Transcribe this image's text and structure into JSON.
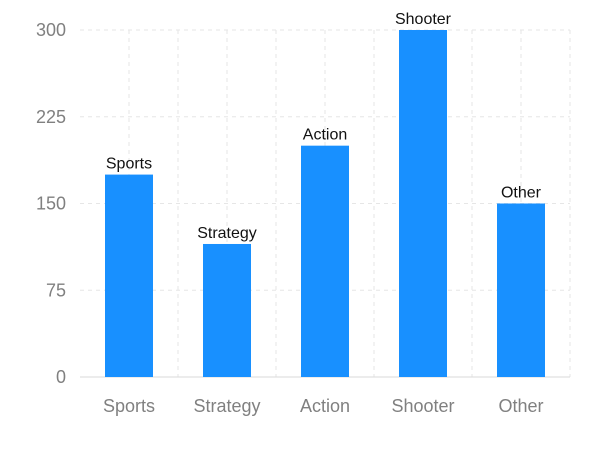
{
  "chart_data": {
    "type": "bar",
    "categories": [
      "Sports",
      "Strategy",
      "Action",
      "Shooter",
      "Other"
    ],
    "values": [
      175,
      115,
      200,
      300,
      150
    ],
    "data_labels": [
      "Sports",
      "Strategy",
      "Action",
      "Shooter",
      "Other"
    ],
    "y_ticks": [
      "0",
      "75",
      "150",
      "225",
      "300"
    ],
    "y_tick_values": [
      0,
      75,
      150,
      225,
      300
    ],
    "ylim": [
      0,
      300
    ],
    "grid": true,
    "bar_color": "#1890ff",
    "title": "",
    "xlabel": "",
    "ylabel": ""
  }
}
